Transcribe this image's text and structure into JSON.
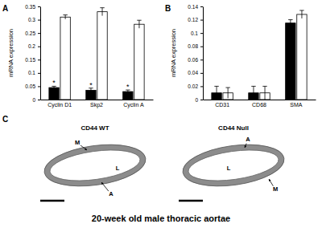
{
  "chart_data": [
    {
      "type": "bar",
      "title": "A",
      "y_label": "mRNA expression",
      "categories": [
        "Cyclin D1",
        "Skp2",
        "Cyclin A"
      ],
      "series": [
        {
          "color": "#000000",
          "values": [
            0.045,
            0.035,
            0.03
          ],
          "errors": [
            0.005,
            0.008,
            0.006
          ]
        },
        {
          "color": "#ffffff",
          "values": [
            0.31,
            0.33,
            0.283
          ],
          "errors": [
            0.008,
            0.015,
            0.015
          ]
        }
      ],
      "annotations": [
        "*",
        "*",
        "*"
      ],
      "ylim": [
        0,
        0.35
      ],
      "yticks": [
        0,
        0.05,
        0.1,
        0.15,
        0.2,
        0.25,
        0.3,
        0.35
      ],
      "grid": false
    },
    {
      "type": "bar",
      "title": "B",
      "y_label": "mRNA expression",
      "categories": [
        "CD31",
        "CD68",
        "SMA"
      ],
      "series": [
        {
          "color": "#000000",
          "values": [
            0.01,
            0.01,
            0.115
          ],
          "errors": [
            0.01,
            0.01,
            0.005
          ]
        },
        {
          "color": "#ffffff",
          "values": [
            0.01,
            0.01,
            0.128
          ],
          "errors": [
            0.008,
            0.01,
            0.006
          ]
        }
      ],
      "ylim": [
        0,
        0.14
      ],
      "yticks": [
        0,
        0.02,
        0.04,
        0.06,
        0.08,
        0.1,
        0.12,
        0.14
      ],
      "grid": false
    }
  ],
  "panel_c": {
    "title": "C",
    "images": [
      {
        "title": "CD44 WT",
        "labels": [
          "M",
          "A",
          "L"
        ]
      },
      {
        "title": "CD44 Null",
        "labels": [
          "A",
          "L",
          "M"
        ]
      }
    ],
    "caption": "20-week old male thoracic aortae"
  }
}
